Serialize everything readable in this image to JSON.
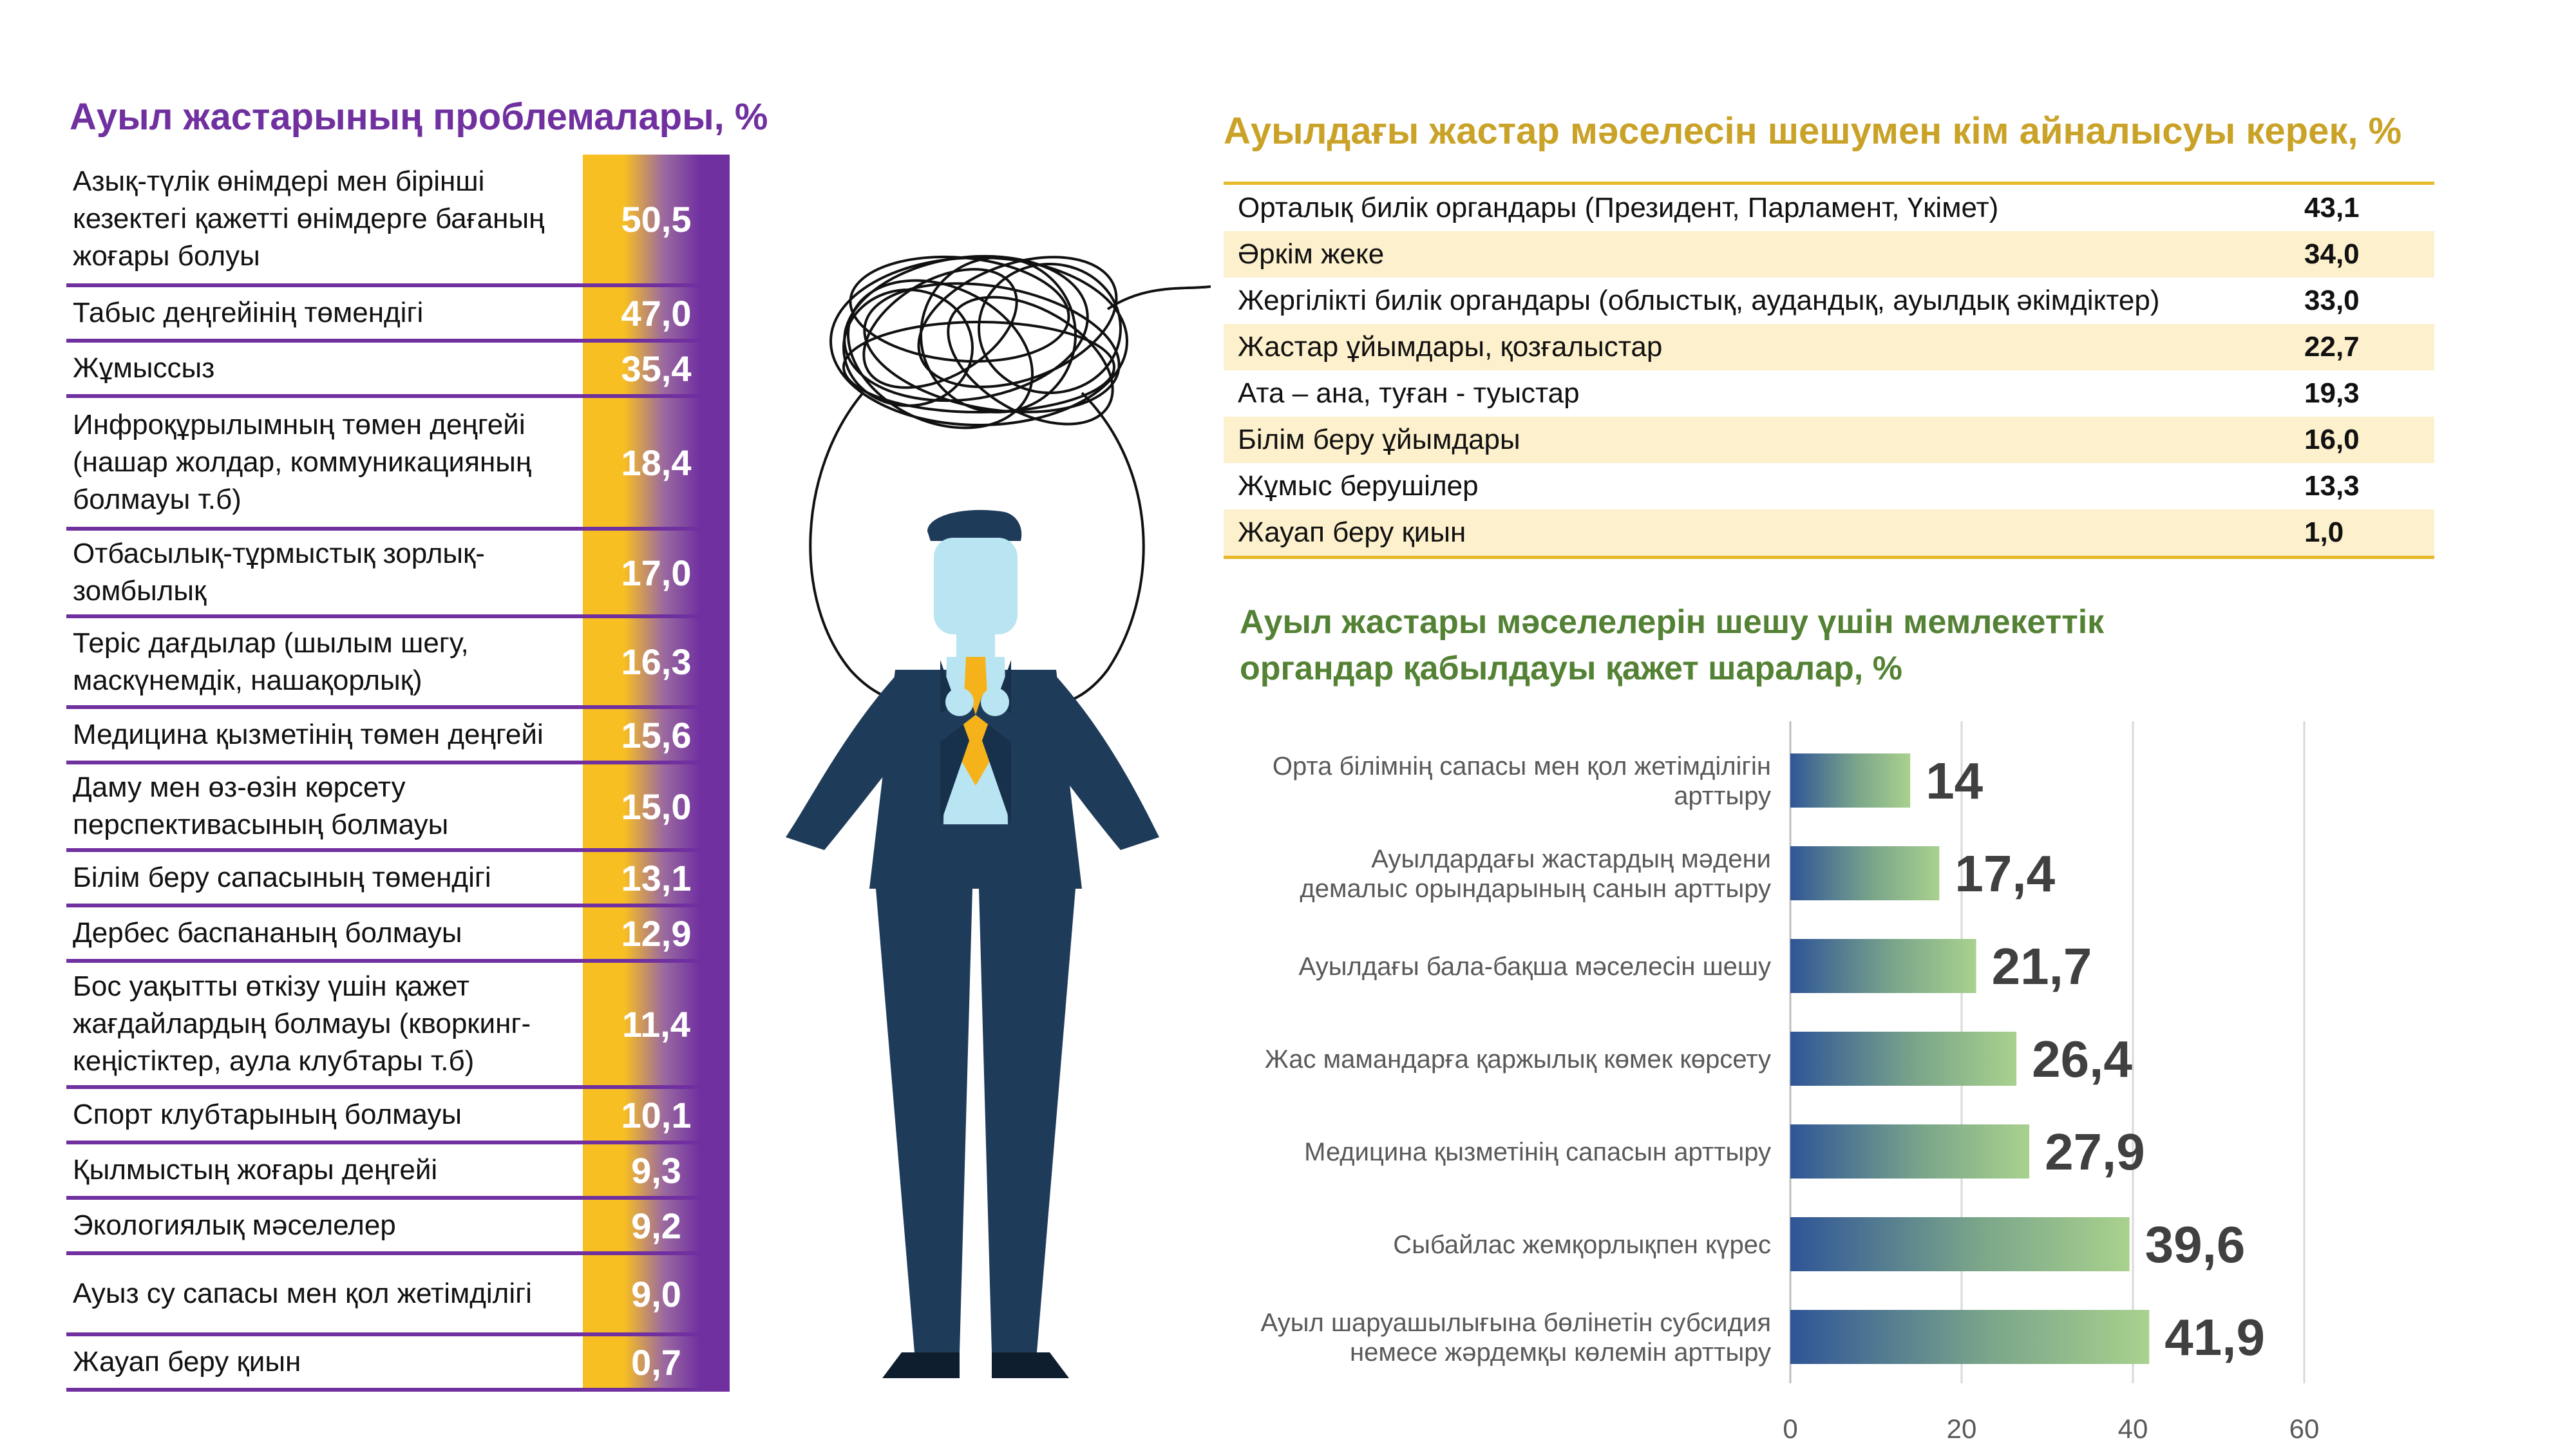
{
  "left_panel": {
    "title": "Ауыл жастарының проблемалары, %",
    "rows": [
      {
        "label": "Азық-түлік өнімдері мен бірінші кезектегі қажетті өнімдерге бағаның жоғары болуы",
        "value": "50,5"
      },
      {
        "label": "Табыс деңгейінің төмендігі",
        "value": "47,0"
      },
      {
        "label": "Жұмыссыз",
        "value": "35,4"
      },
      {
        "label": "Инфроқұрылымның төмен деңгейі (нашар жолдар, коммуникацияның болмауы т.б)",
        "value": "18,4"
      },
      {
        "label": "Отбасылық-тұрмыстық зорлық-зомбылық",
        "value": "17,0"
      },
      {
        "label": "Теріс дағдылар (шылым шегу, маскүнемдік, нашақорлық)",
        "value": "16,3"
      },
      {
        "label": "Медицина қызметінің төмен деңгейі",
        "value": "15,6"
      },
      {
        "label": "Даму мен өз-өзін көрсету перспективасының болмауы",
        "value": "15,0"
      },
      {
        "label": "Білім беру сапасының төмендігі",
        "value": "13,1"
      },
      {
        "label": "Дербес баспананың болмауы",
        "value": "12,9"
      },
      {
        "label": "Бос уақытты өткізу үшін қажет жағдайлардың болмауы (кворкинг-кеңістіктер, аула клубтары т.б)",
        "value": "11,4"
      },
      {
        "label": "Спорт клубтарының болмауы",
        "value": "10,1"
      },
      {
        "label": "Қылмыстың жоғары деңгейі",
        "value": "9,3"
      },
      {
        "label": "Экологиялық мәселелер",
        "value": "9,2"
      },
      {
        "label": "Ауыз су сапасы мен қол жетімділігі",
        "value": "9,0"
      },
      {
        "label": "Жауап беру қиын",
        "value": "0,7"
      }
    ]
  },
  "right_top": {
    "title": "Ауылдағы жастар мәселесін шешумен кім айналысуы керек, %",
    "rows": [
      {
        "label": "Орталық билік органдары (Президент, Парламент, Үкімет)",
        "value": "43,1"
      },
      {
        "label": "Әркім жеке",
        "value": "34,0"
      },
      {
        "label": "Жергілікті билік органдары (облыстық, аудандық, ауылдық әкімдіктер)",
        "value": "33,0"
      },
      {
        "label": "Жастар ұйымдары, қозғалыстар",
        "value": "22,7"
      },
      {
        "label": "Ата – ана, туған - туыстар",
        "value": "19,3"
      },
      {
        "label": "Білім беру ұйымдары",
        "value": "16,0"
      },
      {
        "label": "Жұмыс берушілер",
        "value": "13,3"
      },
      {
        "label": "Жауап беру қиын",
        "value": "1,0"
      }
    ]
  },
  "chart_title": {
    "line1": "Ауыл жастары мәселелерін шешу үшін мемлекеттік",
    "line2": "органдар қабылдауы қажет шаралар, %"
  },
  "chart_data": {
    "type": "bar",
    "orientation": "horizontal",
    "categories": [
      [
        "Орта білімнің сапасы мен қол жетімділігін",
        "арттыру"
      ],
      [
        "Ауылдардағы жастардың мәдени",
        "демалыс орындарының санын арттыру"
      ],
      [
        "Ауылдағы бала-бақша мәселесін шешу"
      ],
      [
        "Жас мамандарға қаржылық көмек көрсету"
      ],
      [
        "Медицина қызметінің сапасын арттыру"
      ],
      [
        "Сыбайлас жемқорлықпен күрес"
      ],
      [
        "Ауыл шаруашылығына бөлінетін субсидия",
        "немесе жәрдемқы көлемін арттыру"
      ]
    ],
    "values": [
      14,
      17.4,
      21.7,
      26.4,
      27.9,
      39.6,
      41.9
    ],
    "value_labels": [
      "14",
      "17,4",
      "21,7",
      "26,4",
      "27,9",
      "39,6",
      "41,9"
    ],
    "xlim": [
      0,
      60
    ],
    "xticks": [
      "0",
      "20",
      "40",
      "60"
    ],
    "grid": true,
    "colors": {
      "start": "#2f5597",
      "end": "#a9d18e"
    }
  },
  "colors": {
    "purple": "#7030a0",
    "gold": "#c9a227",
    "green": "#548235",
    "bar_yellow": "#f8bf22"
  }
}
